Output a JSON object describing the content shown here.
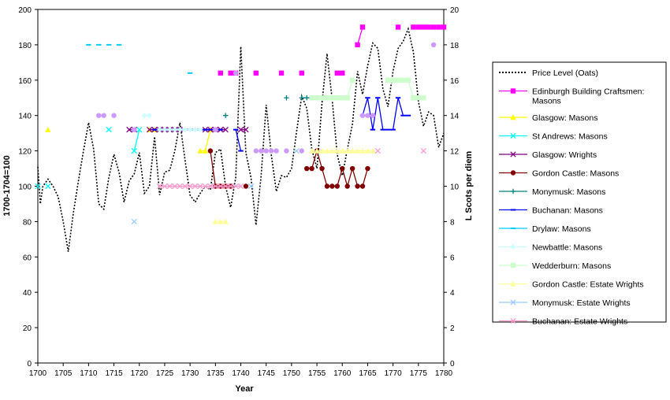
{
  "chart_data": {
    "type": "line",
    "xlabel": "Year",
    "ylabel_left": "1700-1704=100",
    "ylabel_right": "L Scots per diem",
    "xlim": [
      1700,
      1780
    ],
    "ylim_left": [
      0,
      200
    ],
    "ylim_right": [
      0,
      20
    ],
    "x_ticks": [
      "1700",
      "1705",
      "1710",
      "1715",
      "1720",
      "1725",
      "1730",
      "1735",
      "1740",
      "1745",
      "1750",
      "1755",
      "1760",
      "1765",
      "1770",
      "1775",
      "1780"
    ],
    "y_ticks_left": [
      "0",
      "20",
      "40",
      "60",
      "80",
      "100",
      "120",
      "140",
      "160",
      "180",
      "200"
    ],
    "y_ticks_right": [
      "0",
      "2",
      "4",
      "6",
      "8",
      "10",
      "12",
      "14",
      "16",
      "18",
      "20"
    ],
    "grid": false,
    "legend_position": "right",
    "series": [
      {
        "name": "Price Level (Oats)",
        "axis": "left",
        "color": "#000000",
        "style": "dotted",
        "marker": "none",
        "points": [
          [
            1700,
            111
          ],
          [
            1700.5,
            90
          ],
          [
            1701,
            100
          ],
          [
            1702,
            104
          ],
          [
            1703,
            100
          ],
          [
            1704,
            94
          ],
          [
            1705,
            80
          ],
          [
            1706,
            63
          ],
          [
            1707,
            85
          ],
          [
            1708,
            103
          ],
          [
            1709,
            120
          ],
          [
            1710,
            136
          ],
          [
            1711,
            121
          ],
          [
            1712,
            90
          ],
          [
            1713,
            87
          ],
          [
            1714,
            105
          ],
          [
            1715,
            118
          ],
          [
            1716,
            108
          ],
          [
            1717,
            91
          ],
          [
            1718,
            103
          ],
          [
            1719,
            107
          ],
          [
            1720,
            119
          ],
          [
            1721,
            96
          ],
          [
            1722,
            100
          ],
          [
            1723,
            128
          ],
          [
            1724,
            95
          ],
          [
            1725,
            108
          ],
          [
            1726,
            109
          ],
          [
            1727,
            120
          ],
          [
            1728,
            136
          ],
          [
            1729,
            115
          ],
          [
            1730,
            95
          ],
          [
            1731,
            91
          ],
          [
            1732,
            96
          ],
          [
            1733,
            100
          ],
          [
            1734,
            98
          ],
          [
            1735,
            119
          ],
          [
            1736,
            121
          ],
          [
            1737,
            100
          ],
          [
            1738,
            88
          ],
          [
            1739,
            105
          ],
          [
            1740,
            179
          ],
          [
            1741,
            119
          ],
          [
            1742,
            105
          ],
          [
            1743,
            78
          ],
          [
            1744,
            106
          ],
          [
            1745,
            146
          ],
          [
            1746,
            118
          ],
          [
            1747,
            97
          ],
          [
            1748,
            106
          ],
          [
            1749,
            105
          ],
          [
            1750,
            110
          ],
          [
            1751,
            131
          ],
          [
            1752,
            151
          ],
          [
            1753,
            144
          ],
          [
            1754,
            121
          ],
          [
            1755,
            110
          ],
          [
            1756,
            147
          ],
          [
            1757,
            175
          ],
          [
            1758,
            149
          ],
          [
            1759,
            118
          ],
          [
            1760,
            106
          ],
          [
            1761,
            121
          ],
          [
            1762,
            135
          ],
          [
            1763,
            165
          ],
          [
            1764,
            152
          ],
          [
            1765,
            168
          ],
          [
            1766,
            181
          ],
          [
            1767,
            178
          ],
          [
            1768,
            155
          ],
          [
            1769,
            145
          ],
          [
            1770,
            165
          ],
          [
            1771,
            178
          ],
          [
            1772,
            182
          ],
          [
            1773,
            189
          ],
          [
            1774,
            176
          ],
          [
            1775,
            148
          ],
          [
            1776,
            134
          ],
          [
            1777,
            142
          ],
          [
            1778,
            140
          ],
          [
            1779,
            122
          ],
          [
            1780,
            130
          ]
        ]
      },
      {
        "name": "Edinburgh Building Craftsmen: Masons",
        "axis": "right",
        "color": "#ff00ff",
        "marker": "square",
        "points": [
          [
            1736,
            16.4
          ],
          [
            1738,
            16.4
          ],
          [
            1739,
            16.4
          ],
          [
            1743,
            16.4
          ],
          [
            1748,
            16.4
          ],
          [
            1752,
            16.4
          ],
          [
            1759,
            16.4
          ],
          [
            1760,
            16.4
          ],
          [
            1763,
            18
          ],
          [
            1764,
            19
          ],
          [
            1771,
            19
          ],
          [
            1774,
            19
          ],
          [
            1775,
            19
          ],
          [
            1776,
            19
          ],
          [
            1777,
            19
          ],
          [
            1778,
            19
          ],
          [
            1779,
            19
          ],
          [
            1780,
            19
          ]
        ]
      },
      {
        "name": "Glasgow: Masons",
        "axis": "right",
        "color": "#ffff00",
        "marker": "triangle",
        "points": [
          [
            1702,
            13.2
          ],
          [
            1722,
            13.2
          ],
          [
            1723,
            13.2
          ],
          [
            1732,
            12
          ],
          [
            1733,
            12
          ],
          [
            1734,
            13.2
          ]
        ]
      },
      {
        "name": "St Andrews: Masons",
        "axis": "right",
        "color": "#00ffff",
        "marker": "x",
        "points": [
          [
            1700,
            10
          ],
          [
            1702,
            10
          ],
          [
            1714,
            13.2
          ],
          [
            1719,
            12
          ],
          [
            1720,
            13.2
          ]
        ]
      },
      {
        "name": "Glasgow: Wrights",
        "axis": "right",
        "color": "#800080",
        "marker": "x",
        "points": [
          [
            1718,
            13.2
          ],
          [
            1719,
            13.2
          ],
          [
            1722,
            13.2
          ],
          [
            1723,
            13.2
          ],
          [
            1724,
            13.2
          ],
          [
            1725,
            13.2
          ],
          [
            1726,
            13.2
          ],
          [
            1727,
            13.2
          ],
          [
            1728,
            13.2
          ],
          [
            1733,
            13.2
          ],
          [
            1734,
            13.2
          ],
          [
            1735,
            13.2
          ],
          [
            1736,
            13.2
          ],
          [
            1737,
            13.2
          ],
          [
            1740,
            13.2
          ],
          [
            1741,
            13.2
          ]
        ]
      },
      {
        "name": "Gordon Castle: Masons",
        "axis": "right",
        "color": "#800000",
        "marker": "circle",
        "points": [
          [
            1734,
            12
          ],
          [
            1735,
            10
          ],
          [
            1736,
            10
          ],
          [
            1737,
            10
          ],
          [
            1738,
            10
          ],
          [
            1741,
            10
          ],
          [
            1753,
            11
          ],
          [
            1754,
            11
          ],
          [
            1755,
            12
          ],
          [
            1756,
            11
          ],
          [
            1757,
            10
          ],
          [
            1758,
            10
          ],
          [
            1759,
            10
          ],
          [
            1760,
            11
          ],
          [
            1761,
            10
          ],
          [
            1762,
            11
          ],
          [
            1763,
            10
          ],
          [
            1764,
            10
          ],
          [
            1765,
            11
          ]
        ]
      },
      {
        "name": "Monymusk: Masons",
        "axis": "right",
        "color": "#008080",
        "marker": "plus",
        "points": [
          [
            1737,
            14
          ],
          [
            1749,
            15
          ],
          [
            1752,
            15
          ],
          [
            1753,
            15
          ],
          [
            1754,
            15
          ],
          [
            1755,
            15
          ],
          [
            1756,
            15
          ],
          [
            1757,
            15
          ],
          [
            1769,
            16
          ],
          [
            1770,
            16
          ]
        ]
      },
      {
        "name": "Buchanan: Masons",
        "axis": "right",
        "color": "#0000ff",
        "marker": "dash",
        "points": [
          [
            1723,
            13.2
          ],
          [
            1724,
            13.2
          ],
          [
            1725,
            13.2
          ],
          [
            1726,
            13.2
          ],
          [
            1727,
            13.2
          ],
          [
            1728,
            13.2
          ],
          [
            1729,
            13.2
          ],
          [
            1730,
            13.2
          ],
          [
            1731,
            13.2
          ],
          [
            1732,
            13.2
          ],
          [
            1733,
            13.2
          ],
          [
            1734,
            13.2
          ],
          [
            1735,
            13.2
          ],
          [
            1736,
            13.2
          ],
          [
            1739,
            13.2
          ],
          [
            1740,
            12
          ],
          [
            1764,
            14
          ],
          [
            1765,
            15
          ],
          [
            1766,
            13.2
          ],
          [
            1767,
            15
          ],
          [
            1768,
            13.2
          ],
          [
            1769,
            13.2
          ],
          [
            1770,
            13.2
          ],
          [
            1771,
            15
          ],
          [
            1772,
            14
          ],
          [
            1773,
            14
          ]
        ]
      },
      {
        "name": "Drylaw: Masons",
        "axis": "right",
        "color": "#00ccff",
        "marker": "dash",
        "points": [
          [
            1710,
            18
          ],
          [
            1712,
            18
          ],
          [
            1714,
            18
          ],
          [
            1716,
            18
          ],
          [
            1730,
            16.4
          ]
        ]
      },
      {
        "name": "Newbattle: Masons",
        "axis": "right",
        "color": "#ccffff",
        "marker": "diamond",
        "points": [
          [
            1721,
            14
          ],
          [
            1722,
            14
          ],
          [
            1724,
            13.2
          ],
          [
            1725,
            13.2
          ],
          [
            1726,
            13.2
          ],
          [
            1727,
            13.2
          ],
          [
            1728,
            13.2
          ],
          [
            1729,
            13.2
          ],
          [
            1730,
            13.2
          ],
          [
            1731,
            13.2
          ],
          [
            1732,
            13.2
          ]
        ]
      },
      {
        "name": "Wedderburn: Masons",
        "axis": "right",
        "color": "#ccffcc",
        "marker": "square",
        "points": [
          [
            1754,
            15
          ],
          [
            1755,
            15
          ],
          [
            1756,
            15
          ],
          [
            1757,
            15
          ],
          [
            1758,
            15
          ],
          [
            1759,
            15
          ],
          [
            1760,
            15
          ],
          [
            1761,
            15
          ],
          [
            1762,
            16
          ],
          [
            1769,
            16
          ],
          [
            1770,
            16
          ],
          [
            1771,
            16
          ],
          [
            1772,
            16
          ],
          [
            1773,
            16
          ],
          [
            1774,
            15
          ],
          [
            1775,
            15
          ],
          [
            1776,
            15
          ]
        ]
      },
      {
        "name": "Gordon Castle: Estate Wrights",
        "axis": "right",
        "color": "#ffff99",
        "marker": "triangle",
        "points": [
          [
            1735,
            8
          ],
          [
            1736,
            8
          ],
          [
            1737,
            8
          ],
          [
            1754,
            12
          ],
          [
            1755,
            12
          ],
          [
            1756,
            12
          ],
          [
            1757,
            12
          ],
          [
            1758,
            12
          ],
          [
            1759,
            12
          ],
          [
            1760,
            12
          ],
          [
            1761,
            12
          ],
          [
            1762,
            12
          ],
          [
            1763,
            12
          ],
          [
            1764,
            12
          ],
          [
            1765,
            12
          ],
          [
            1766,
            12
          ]
        ]
      },
      {
        "name": "Monymusk: Estate Wrights",
        "axis": "right",
        "color": "#99ccff",
        "marker": "x",
        "points": [
          [
            1719,
            8
          ],
          [
            1742,
            10
          ],
          [
            1751,
            12
          ]
        ]
      },
      {
        "name": "Buchanan: Estate Wrights",
        "axis": "right",
        "color": "#ff99cc",
        "marker": "x",
        "points": [
          [
            1724,
            10
          ],
          [
            1725,
            10
          ],
          [
            1726,
            10
          ],
          [
            1727,
            10
          ],
          [
            1728,
            10
          ],
          [
            1729,
            10
          ],
          [
            1730,
            10
          ],
          [
            1731,
            10
          ],
          [
            1732,
            10
          ],
          [
            1733,
            10
          ],
          [
            1734,
            10
          ],
          [
            1735,
            10
          ],
          [
            1736,
            10
          ],
          [
            1737,
            10
          ],
          [
            1738,
            10
          ],
          [
            1739,
            10
          ],
          [
            1740,
            10
          ],
          [
            1767,
            12
          ],
          [
            1776,
            12
          ]
        ]
      },
      {
        "name": "",
        "axis": "right",
        "color": "#cc99ff",
        "marker": "circle",
        "legend": false,
        "points": [
          [
            1712,
            14
          ],
          [
            1713,
            14
          ],
          [
            1715,
            14
          ],
          [
            1719,
            13.2
          ],
          [
            1735,
            13.2
          ],
          [
            1739,
            16.4
          ],
          [
            1743,
            12
          ],
          [
            1744,
            12
          ],
          [
            1745,
            12
          ],
          [
            1746,
            12
          ],
          [
            1747,
            12
          ],
          [
            1749,
            12
          ],
          [
            1752,
            12
          ],
          [
            1764,
            14
          ],
          [
            1765,
            14
          ],
          [
            1766,
            14
          ],
          [
            1778,
            18
          ]
        ]
      }
    ]
  }
}
